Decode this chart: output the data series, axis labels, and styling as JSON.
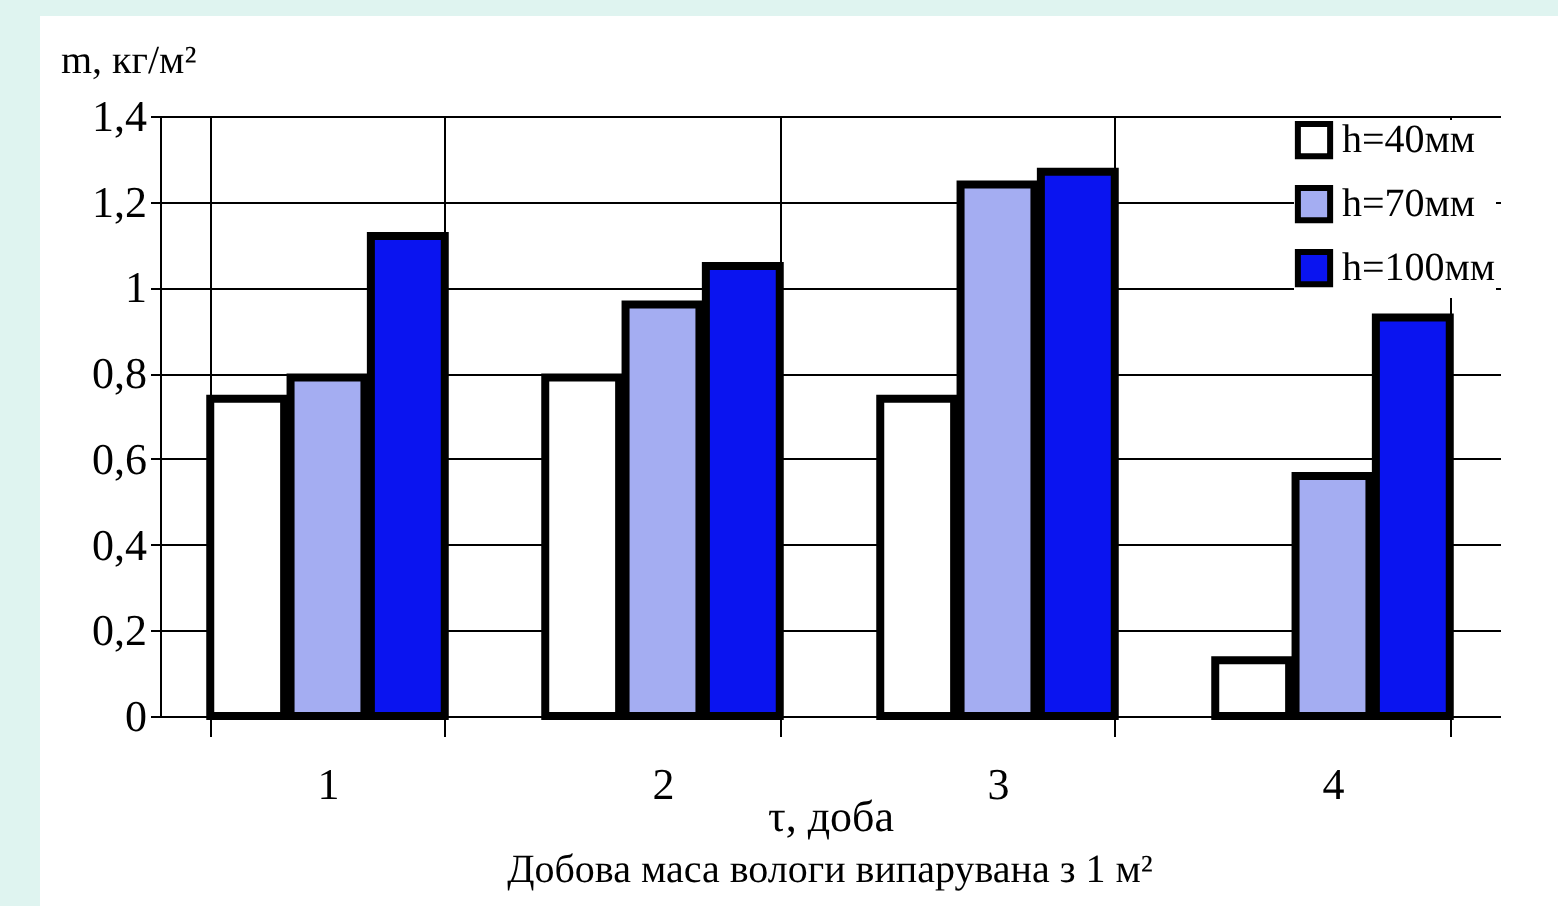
{
  "chart_data": {
    "type": "bar",
    "title": "Добова маса вологи випарувана з 1 м²",
    "xlabel": "τ, доба",
    "ylabel": "m, кг/м²",
    "categories": [
      "1",
      "2",
      "3",
      "4"
    ],
    "series": [
      {
        "name": "h=40мм",
        "color": "#ffffff",
        "values": [
          0.74,
          0.79,
          0.74,
          0.13
        ]
      },
      {
        "name": "h=70мм",
        "color": "#a4adf2",
        "values": [
          0.79,
          0.96,
          1.24,
          0.56
        ]
      },
      {
        "name": "h=100мм",
        "color": "#0a14f0",
        "values": [
          1.12,
          1.05,
          1.27,
          0.93
        ]
      }
    ],
    "ylim": [
      0,
      1.4
    ],
    "yticks": [
      0,
      {
        "value": 0.2,
        "label": "0,2"
      },
      {
        "value": 0.4,
        "label": "0,4"
      },
      {
        "value": 0.6,
        "label": "0,6"
      },
      {
        "value": 0.8,
        "label": "0,8"
      },
      1,
      {
        "value": 1.2,
        "label": "1,2"
      },
      {
        "value": 1.4,
        "label": "1,4"
      }
    ],
    "grid": true,
    "legend": "top right"
  }
}
